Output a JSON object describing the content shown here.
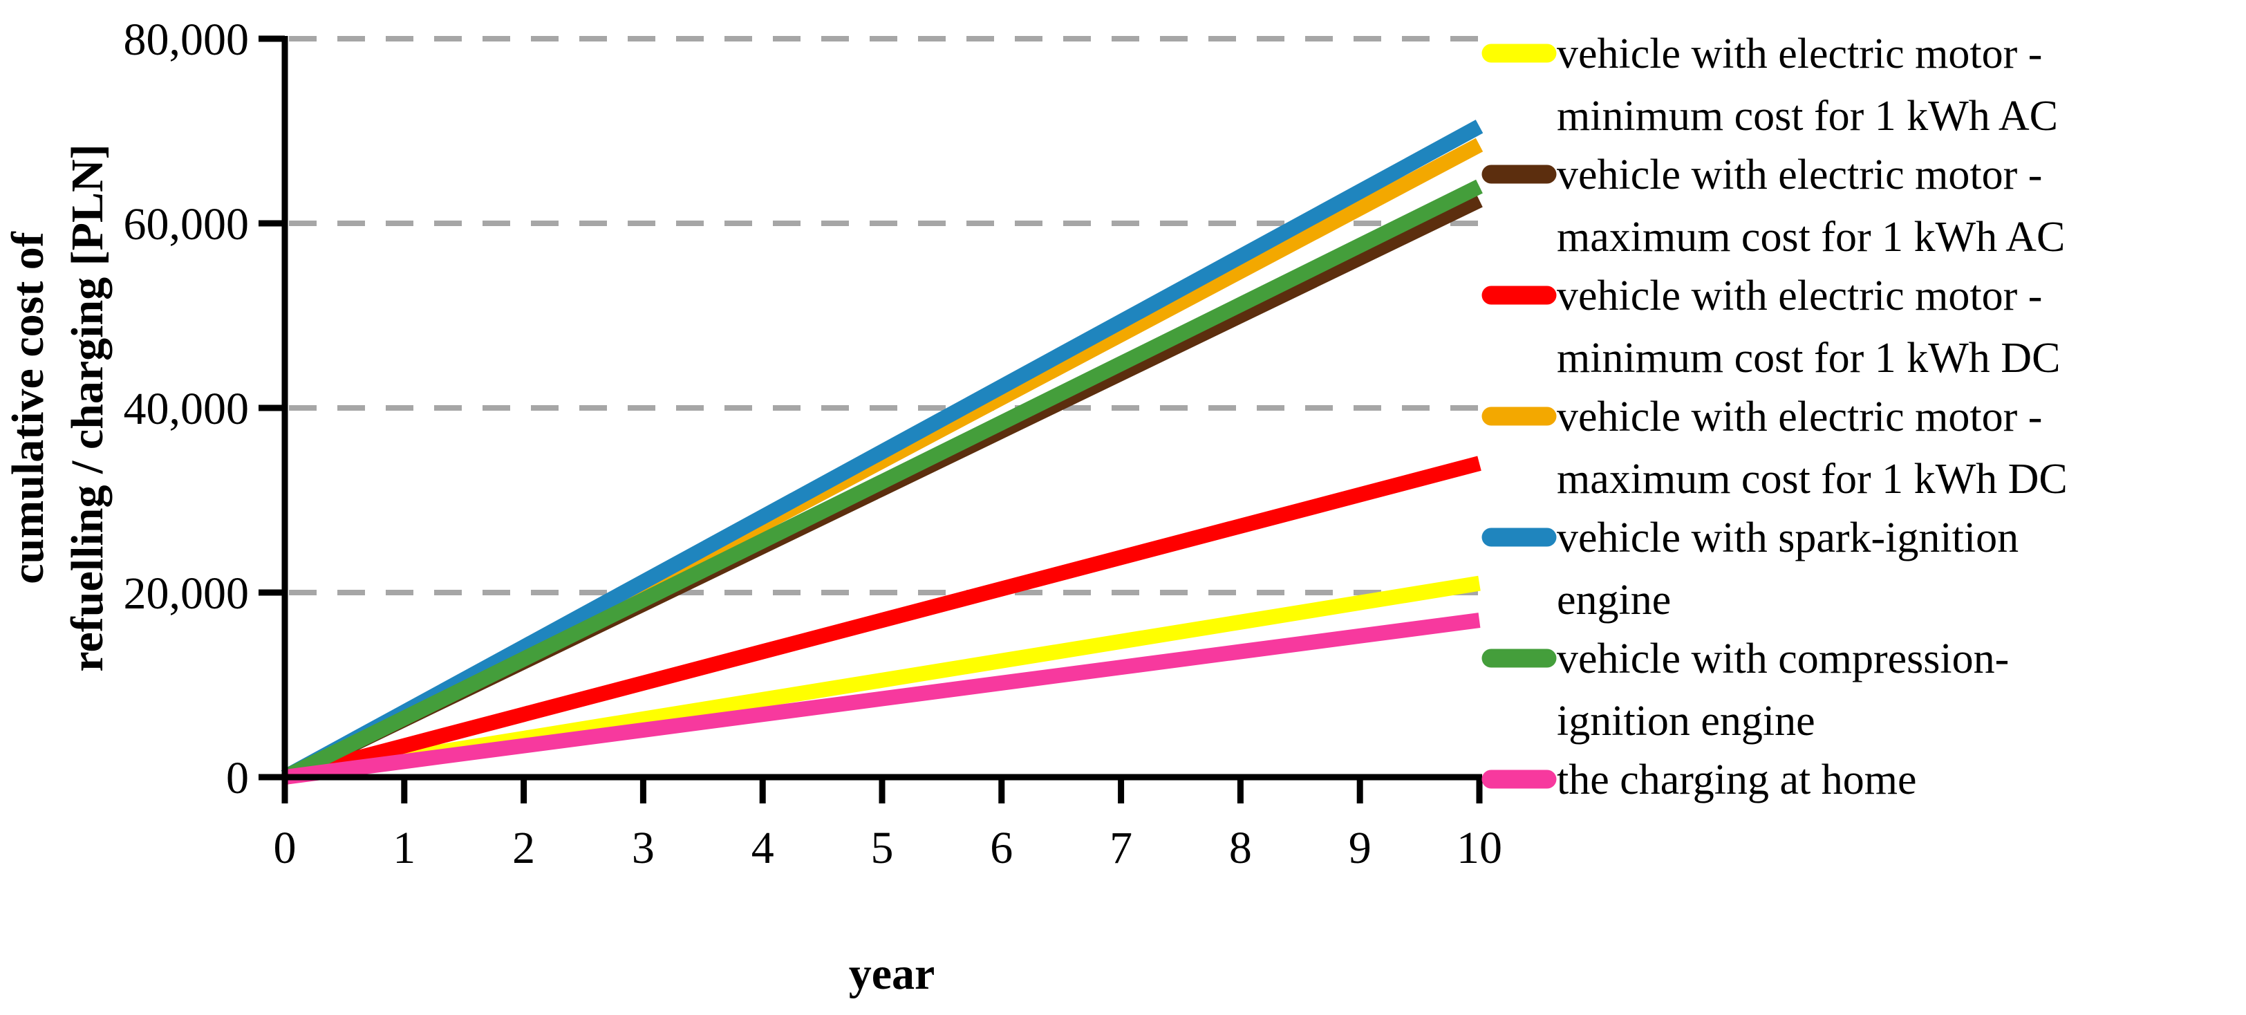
{
  "chart_data": {
    "type": "line",
    "title": "",
    "xlabel": "year",
    "ylabel_line1": "cumulative cost of",
    "ylabel_line2": "refuelling / charging [PLN]",
    "xlim": [
      0,
      10
    ],
    "ylim": [
      0,
      80000
    ],
    "grid": "horizontal-dashed",
    "legend_position": "right",
    "x": [
      0,
      1,
      2,
      3,
      4,
      5,
      6,
      7,
      8,
      9,
      10
    ],
    "x_tick_labels": [
      "0",
      "1",
      "2",
      "3",
      "4",
      "5",
      "6",
      "7",
      "8",
      "9",
      "10"
    ],
    "y_ticks": [
      {
        "value": 0,
        "label": "0"
      },
      {
        "value": 20000,
        "label": "20,000"
      },
      {
        "value": 40000,
        "label": "40,000"
      },
      {
        "value": 60000,
        "label": "60,000"
      },
      {
        "value": 80000,
        "label": "80,000"
      }
    ],
    "series": [
      {
        "name": "vehicle with electric motor - minimum cost for 1 kWh AC",
        "legend_lines": [
          "vehicle with electric motor -",
          "minimum cost for 1 kWh AC"
        ],
        "color": "#FFFF00",
        "values": [
          0,
          2100,
          4200,
          6300,
          8400,
          10500,
          12600,
          14700,
          16800,
          18900,
          21000
        ]
      },
      {
        "name": "vehicle with electric motor - maximum cost for 1 kWh AC",
        "legend_lines": [
          "vehicle with electric motor -",
          "maximum cost for 1 kWh AC"
        ],
        "color": "#5C2E0E",
        "values": [
          0,
          6250,
          12500,
          18750,
          25000,
          31250,
          37500,
          43750,
          50000,
          56250,
          62500
        ]
      },
      {
        "name": "vehicle with electric motor - minimum cost for 1 kWh DC",
        "legend_lines": [
          "vehicle with electric motor -",
          "minimum cost for 1 kWh DC"
        ],
        "color": "#FF0000",
        "values": [
          0,
          3400,
          6800,
          10200,
          13600,
          17000,
          20400,
          23800,
          27200,
          30600,
          34000
        ]
      },
      {
        "name": "vehicle with electric motor - maximum cost for 1 kWh DC",
        "legend_lines": [
          "vehicle with electric motor -",
          "maximum cost for 1 kWh DC"
        ],
        "color": "#F3A800",
        "values": [
          0,
          6850,
          13700,
          20550,
          27400,
          34250,
          41100,
          47950,
          54800,
          61650,
          68500
        ]
      },
      {
        "name": "vehicle with spark-ignition engine",
        "legend_lines": [
          "vehicle with spark-ignition",
          "engine"
        ],
        "color": "#1F85BE",
        "values": [
          0,
          7050,
          14100,
          21150,
          28200,
          35250,
          42300,
          49350,
          56400,
          63450,
          70500
        ]
      },
      {
        "name": "vehicle with compression-ignition engine",
        "legend_lines": [
          "vehicle with compression-",
          "ignition engine"
        ],
        "color": "#449E3B",
        "values": [
          0,
          6400,
          12800,
          19200,
          25600,
          32000,
          38400,
          44800,
          51200,
          57600,
          64000
        ]
      },
      {
        "name": "the charging at home",
        "legend_lines": [
          "the charging at home"
        ],
        "color": "#F7399E",
        "values": [
          0,
          1700,
          3400,
          5100,
          6800,
          8500,
          10200,
          11900,
          13600,
          15300,
          17000
        ]
      }
    ],
    "colors": {
      "grid": "#A6A6A6",
      "axis": "#000000",
      "text": "#000000",
      "background": "#FFFFFF"
    }
  }
}
